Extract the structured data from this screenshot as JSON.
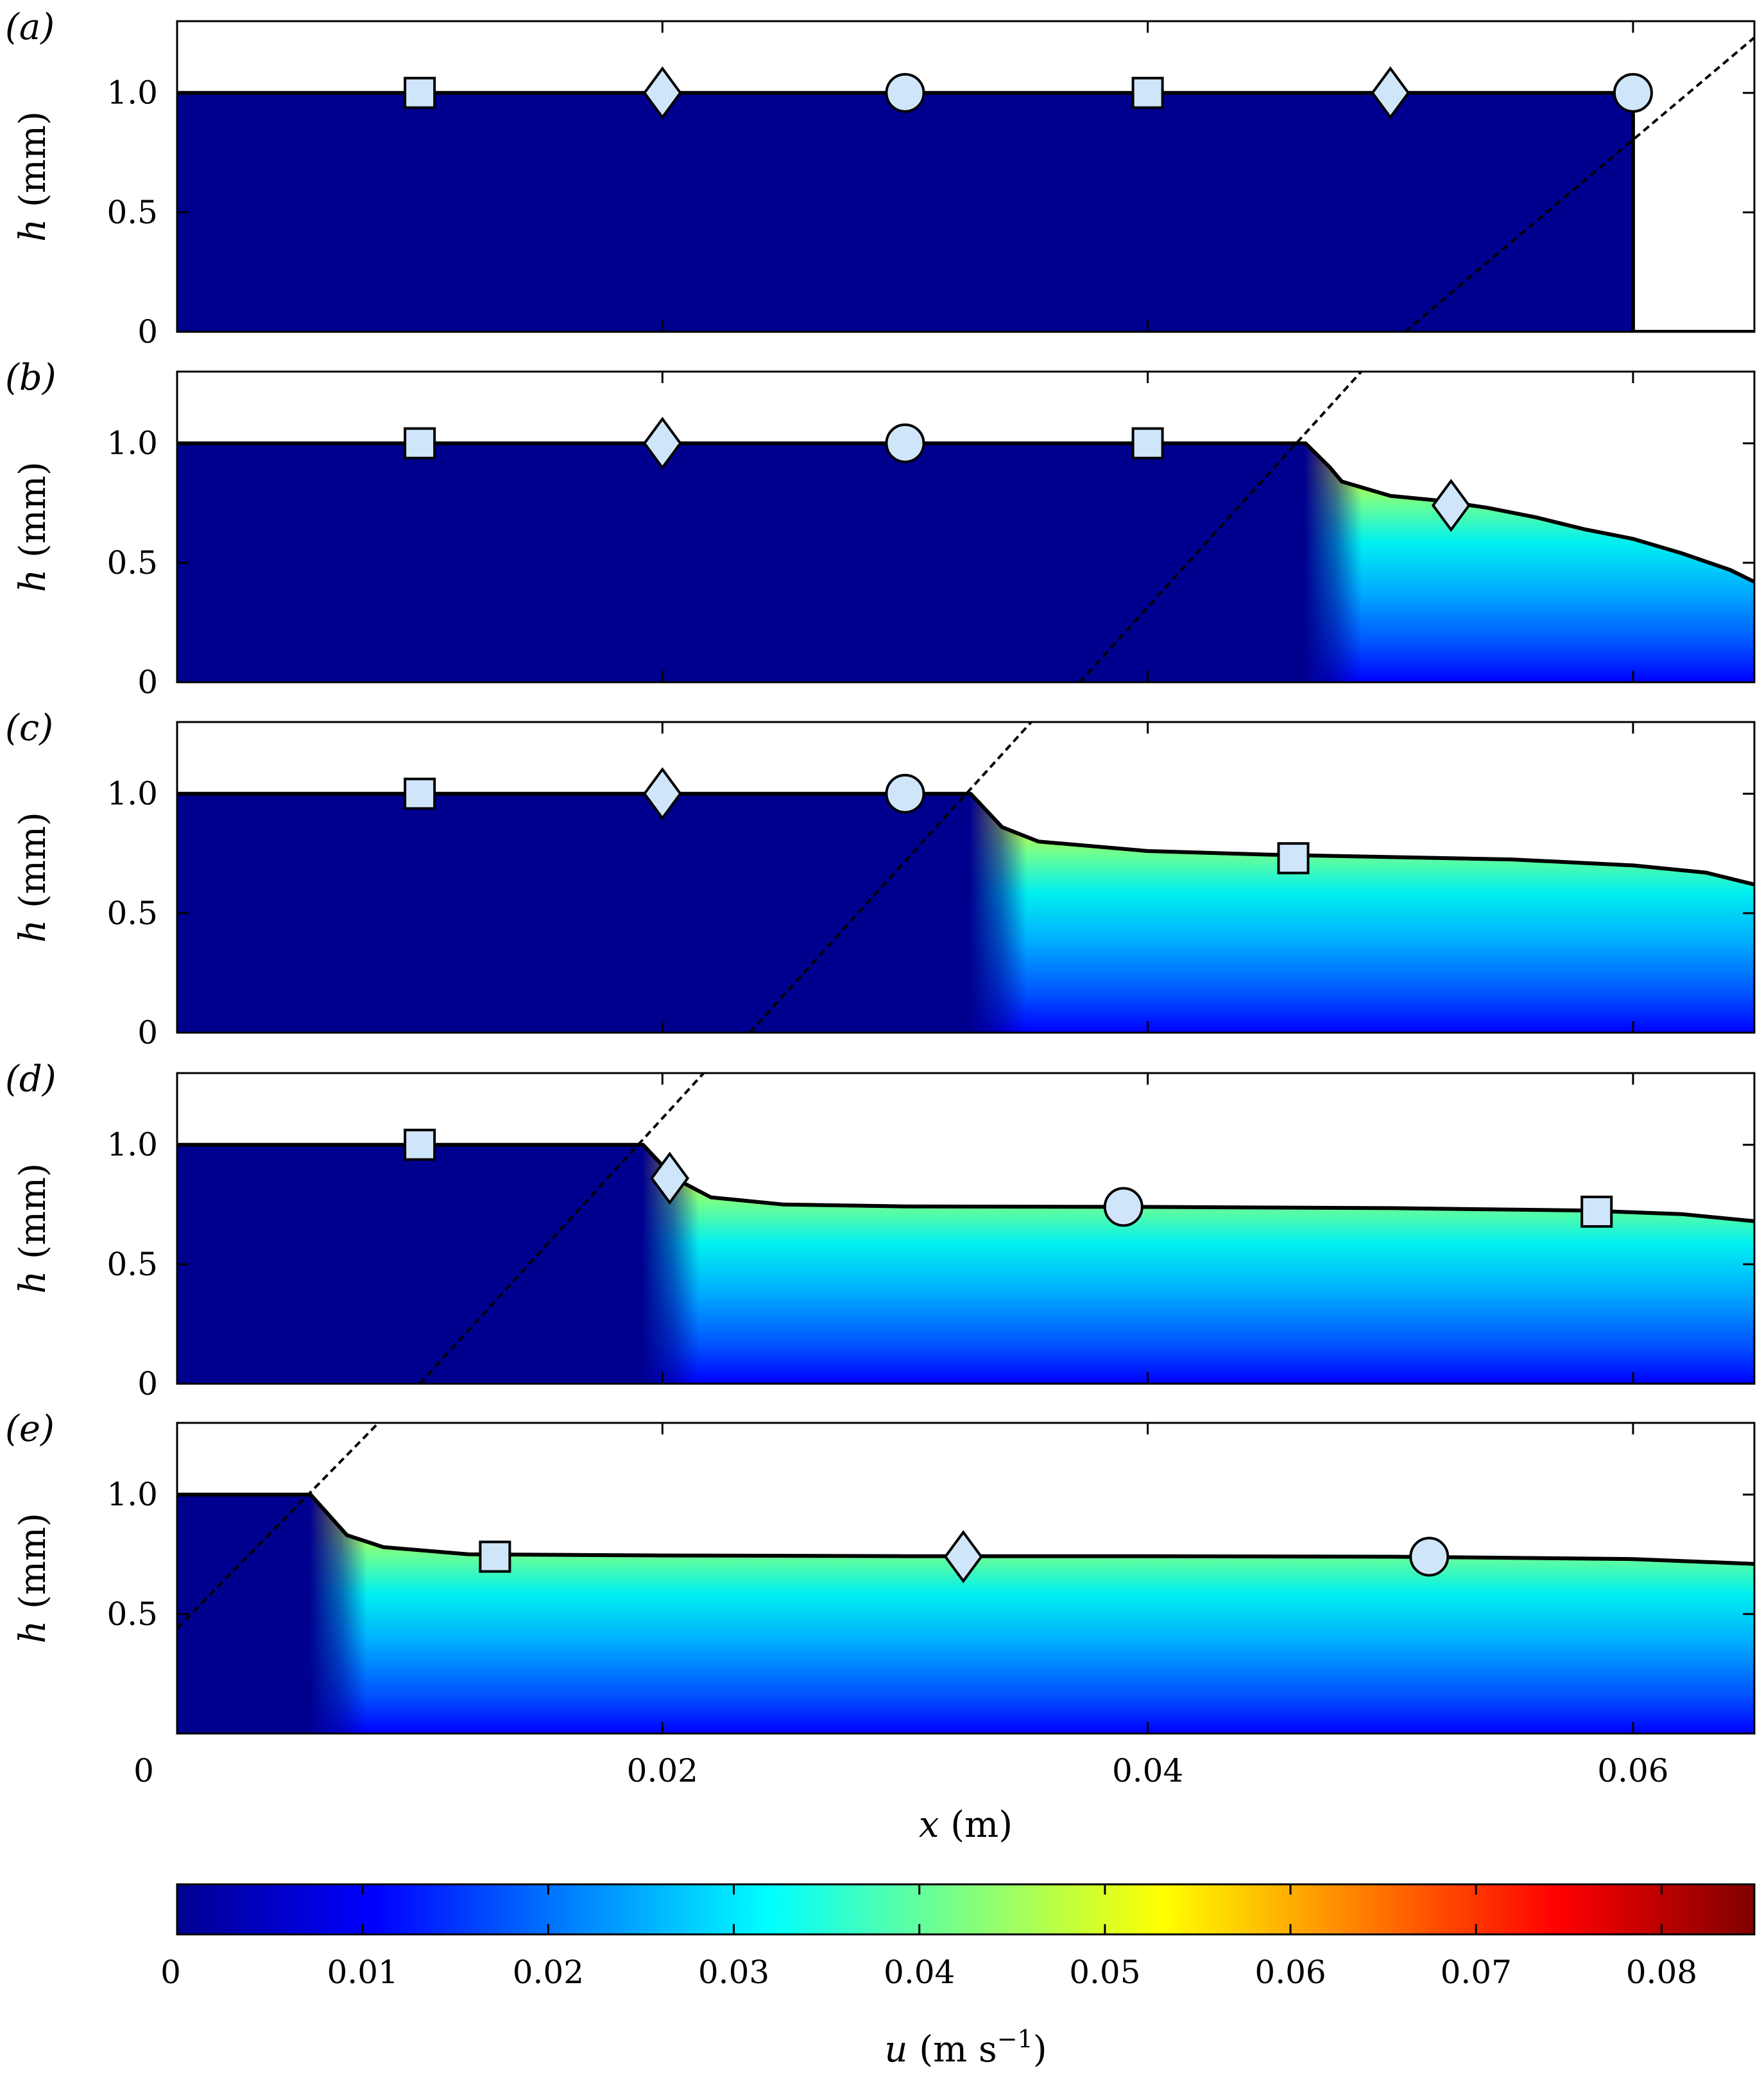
{
  "chart_data": {
    "type": "heatmap",
    "colormap": "jet",
    "shared_x": {
      "label_var": "x",
      "label_unit": " (m)",
      "lim": [
        0,
        0.065
      ],
      "ticks": [
        0,
        0.02,
        0.04,
        0.06
      ],
      "tick_labels": [
        "0",
        "0.02",
        "0.04",
        "0.06"
      ]
    },
    "y_axis": {
      "label_var": "h",
      "label_unit": " (mm)",
      "lim": [
        0,
        1.3
      ],
      "ticks": [
        0,
        0.5,
        1.0
      ],
      "tick_labels": [
        "0",
        "0.5",
        "1.0"
      ]
    },
    "colorbar": {
      "label_var": "u",
      "label_unit": " (m s",
      "label_exp": "−1",
      "label_close": ")",
      "range": [
        0,
        0.085
      ],
      "ticks": [
        0,
        0.01,
        0.02,
        0.03,
        0.04,
        0.05,
        0.06,
        0.07,
        0.08
      ],
      "tick_labels": [
        "0",
        "0.01",
        "0.02",
        "0.03",
        "0.04",
        "0.05",
        "0.06",
        "0.07",
        "0.08"
      ]
    },
    "panels": [
      {
        "label": "(a)",
        "front_x": 0.06,
        "show_zero_tick": true,
        "surface": [
          [
            0,
            1.0
          ],
          [
            0.06,
            1.0
          ],
          [
            0.06,
            0.0
          ],
          [
            0.065,
            0.0
          ]
        ],
        "characteristic": [
          [
            0.0506,
            0.0
          ],
          [
            0.0658,
            1.3
          ]
        ],
        "markers": [
          {
            "shape": "square",
            "x": 0.01,
            "h": 1.0
          },
          {
            "shape": "diamond",
            "x": 0.02,
            "h": 1.0
          },
          {
            "shape": "circle",
            "x": 0.03,
            "h": 1.0
          },
          {
            "shape": "square",
            "x": 0.04,
            "h": 1.0
          },
          {
            "shape": "diamond",
            "x": 0.05,
            "h": 1.0
          },
          {
            "shape": "circle",
            "x": 0.06,
            "h": 1.0
          }
        ]
      },
      {
        "label": "(b)",
        "front_x": 0.0465,
        "show_zero_tick": true,
        "surface": [
          [
            0,
            1.0
          ],
          [
            0.0465,
            1.0
          ],
          [
            0.0475,
            0.9
          ],
          [
            0.048,
            0.84
          ],
          [
            0.05,
            0.78
          ],
          [
            0.052,
            0.76
          ],
          [
            0.054,
            0.73
          ],
          [
            0.056,
            0.69
          ],
          [
            0.058,
            0.64
          ],
          [
            0.06,
            0.6
          ],
          [
            0.062,
            0.54
          ],
          [
            0.064,
            0.47
          ],
          [
            0.065,
            0.42
          ]
        ],
        "characteristic": [
          [
            0.0372,
            0.0
          ],
          [
            0.0488,
            1.3
          ]
        ],
        "markers": [
          {
            "shape": "square",
            "x": 0.01,
            "h": 1.0
          },
          {
            "shape": "diamond",
            "x": 0.02,
            "h": 1.0
          },
          {
            "shape": "circle",
            "x": 0.03,
            "h": 1.0
          },
          {
            "shape": "square",
            "x": 0.04,
            "h": 1.0
          },
          {
            "shape": "diamond",
            "x": 0.0525,
            "h": 0.74
          }
        ]
      },
      {
        "label": "(c)",
        "front_x": 0.0327,
        "show_zero_tick": true,
        "surface": [
          [
            0,
            1.0
          ],
          [
            0.0327,
            1.0
          ],
          [
            0.034,
            0.86
          ],
          [
            0.0355,
            0.8
          ],
          [
            0.04,
            0.76
          ],
          [
            0.045,
            0.745
          ],
          [
            0.05,
            0.735
          ],
          [
            0.055,
            0.725
          ],
          [
            0.06,
            0.7
          ],
          [
            0.063,
            0.67
          ],
          [
            0.065,
            0.62
          ]
        ],
        "characteristic": [
          [
            0.0236,
            0.0
          ],
          [
            0.0352,
            1.3
          ]
        ],
        "markers": [
          {
            "shape": "square",
            "x": 0.01,
            "h": 1.0
          },
          {
            "shape": "diamond",
            "x": 0.02,
            "h": 1.0
          },
          {
            "shape": "circle",
            "x": 0.03,
            "h": 1.0
          },
          {
            "shape": "square",
            "x": 0.046,
            "h": 0.73
          }
        ]
      },
      {
        "label": "(d)",
        "front_x": 0.0192,
        "show_zero_tick": true,
        "surface": [
          [
            0,
            1.0
          ],
          [
            0.0192,
            1.0
          ],
          [
            0.0205,
            0.86
          ],
          [
            0.022,
            0.78
          ],
          [
            0.025,
            0.75
          ],
          [
            0.03,
            0.742
          ],
          [
            0.04,
            0.74
          ],
          [
            0.05,
            0.735
          ],
          [
            0.058,
            0.725
          ],
          [
            0.062,
            0.71
          ],
          [
            0.065,
            0.68
          ]
        ],
        "characteristic": [
          [
            0.01,
            0.0
          ],
          [
            0.0217,
            1.3
          ]
        ],
        "markers": [
          {
            "shape": "square",
            "x": 0.01,
            "h": 1.0
          },
          {
            "shape": "diamond",
            "x": 0.0203,
            "h": 0.86
          },
          {
            "shape": "circle",
            "x": 0.039,
            "h": 0.74
          },
          {
            "shape": "square",
            "x": 0.0585,
            "h": 0.72
          }
        ]
      },
      {
        "label": "(e)",
        "front_x": 0.0055,
        "show_zero_tick": false,
        "surface": [
          [
            0,
            1.0
          ],
          [
            0.0055,
            1.0
          ],
          [
            0.007,
            0.83
          ],
          [
            0.0085,
            0.78
          ],
          [
            0.012,
            0.75
          ],
          [
            0.02,
            0.745
          ],
          [
            0.03,
            0.742
          ],
          [
            0.04,
            0.742
          ],
          [
            0.05,
            0.74
          ],
          [
            0.06,
            0.73
          ],
          [
            0.065,
            0.71
          ]
        ],
        "characteristic": [
          [
            0.0,
            0.44
          ],
          [
            0.0083,
            1.3
          ]
        ],
        "markers": [
          {
            "shape": "square",
            "x": 0.0131,
            "h": 0.74
          },
          {
            "shape": "diamond",
            "x": 0.0324,
            "h": 0.74
          },
          {
            "shape": "circle",
            "x": 0.0516,
            "h": 0.74
          }
        ]
      }
    ]
  }
}
